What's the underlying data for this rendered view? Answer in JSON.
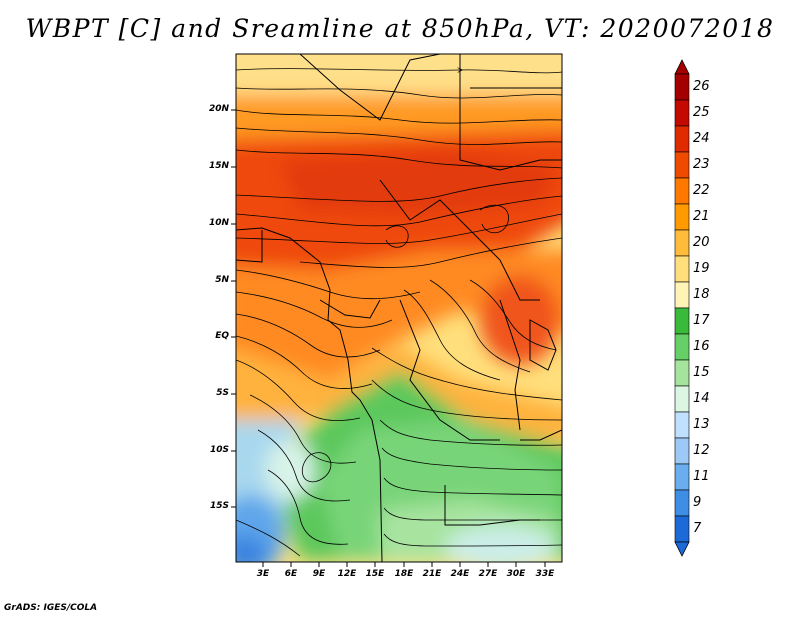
{
  "title": "WBPT [C] and Sreamline at 850hPa, VT: 2020072018",
  "footer": "GrADS: IGES/COLA",
  "map": {
    "lat_labels": [
      "20N",
      "15N",
      "10N",
      "5N",
      "EQ",
      "5S",
      "10S",
      "15S"
    ],
    "lon_labels": [
      "3E",
      "6E",
      "9E",
      "12E",
      "15E",
      "18E",
      "21E",
      "24E",
      "27E",
      "30E",
      "33E"
    ]
  },
  "colorbar": {
    "labels": [
      "26",
      "25",
      "24",
      "23",
      "22",
      "21",
      "20",
      "19",
      "18",
      "17",
      "16",
      "15",
      "14",
      "13",
      "12",
      "11",
      "9",
      "7"
    ],
    "colors": [
      "#a50000",
      "#c40a00",
      "#e02a00",
      "#f04a00",
      "#ff7800",
      "#ff9a00",
      "#ffbc3a",
      "#ffdf7c",
      "#fff3b5",
      "#3aba3a",
      "#66d066",
      "#a5e49c",
      "#dcf6e4",
      "#bfe0ff",
      "#9cc9f6",
      "#6aaef0",
      "#3f8ee6",
      "#1c6ad8"
    ]
  }
}
